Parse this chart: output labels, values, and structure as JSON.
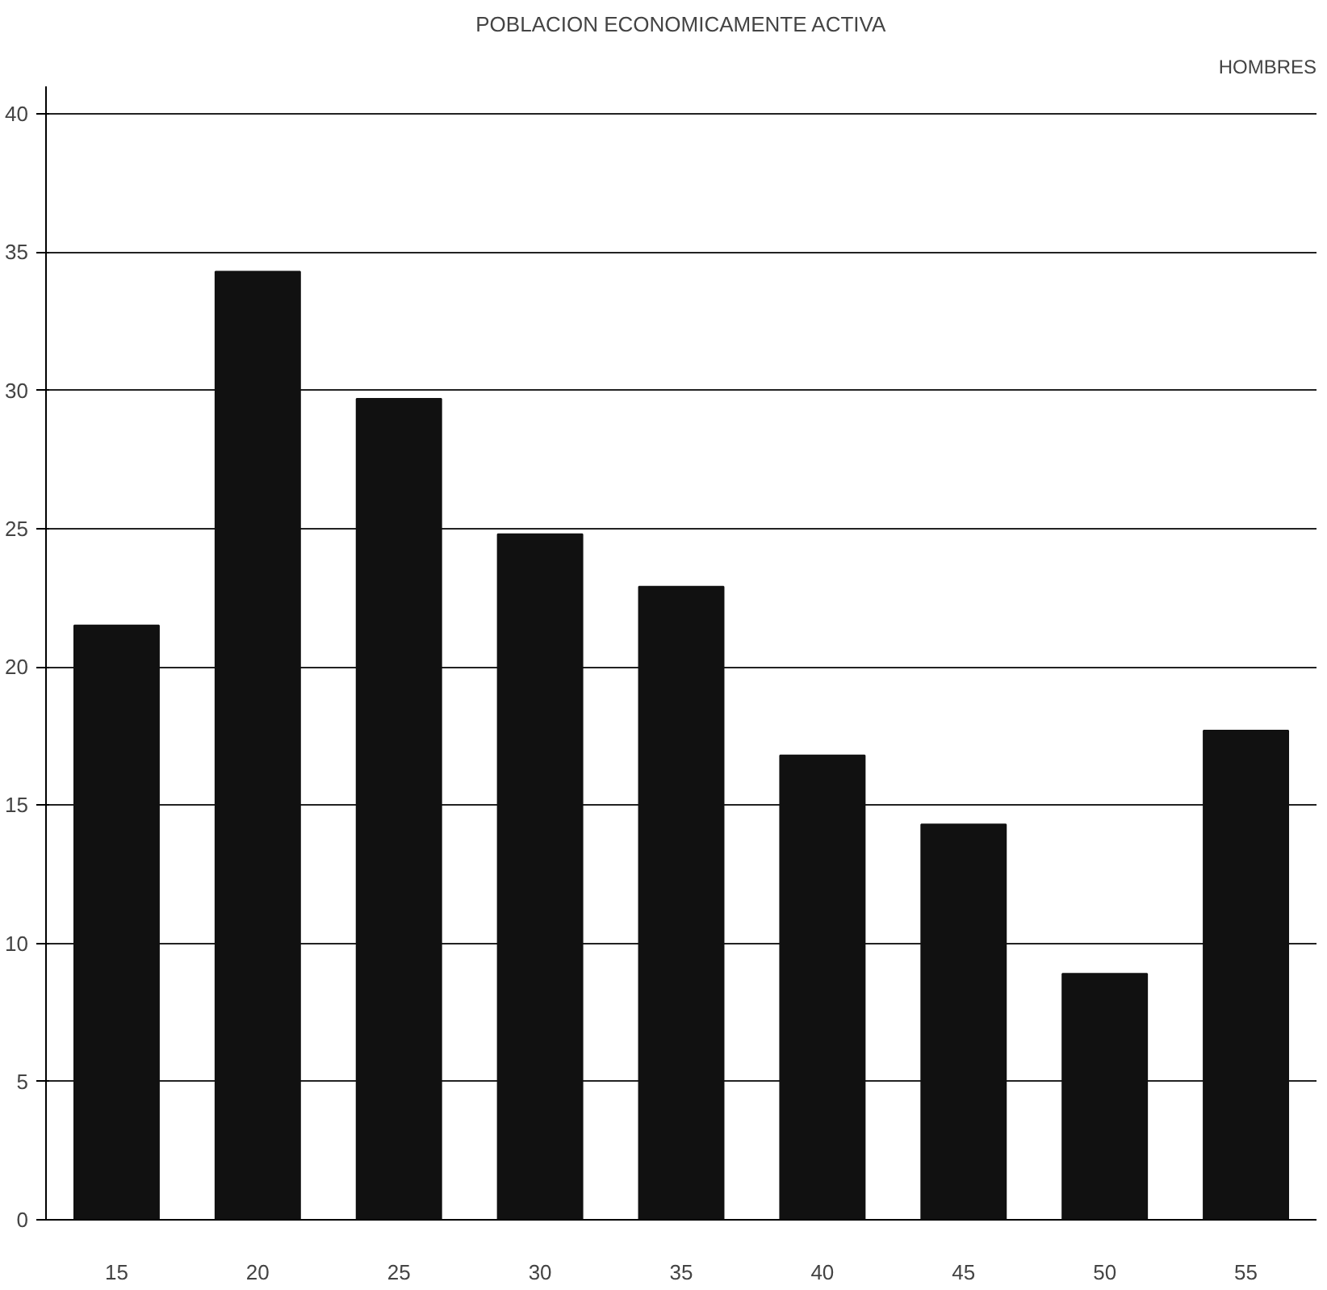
{
  "chart_data": {
    "type": "bar",
    "title": "POBLACION ECONOMICAMENTE ACTIVA",
    "subtitle": "HOMBRES",
    "categories": [
      "15",
      "20",
      "25",
      "30",
      "35",
      "40",
      "45",
      "50",
      "55"
    ],
    "values": [
      21.5,
      34.3,
      29.7,
      24.8,
      22.9,
      16.8,
      14.3,
      8.9,
      17.7
    ],
    "color": "#111111",
    "ylim": [
      0,
      41
    ],
    "yticks": [
      0,
      5,
      10,
      15,
      20,
      25,
      30,
      35,
      40
    ],
    "grid": "y"
  }
}
